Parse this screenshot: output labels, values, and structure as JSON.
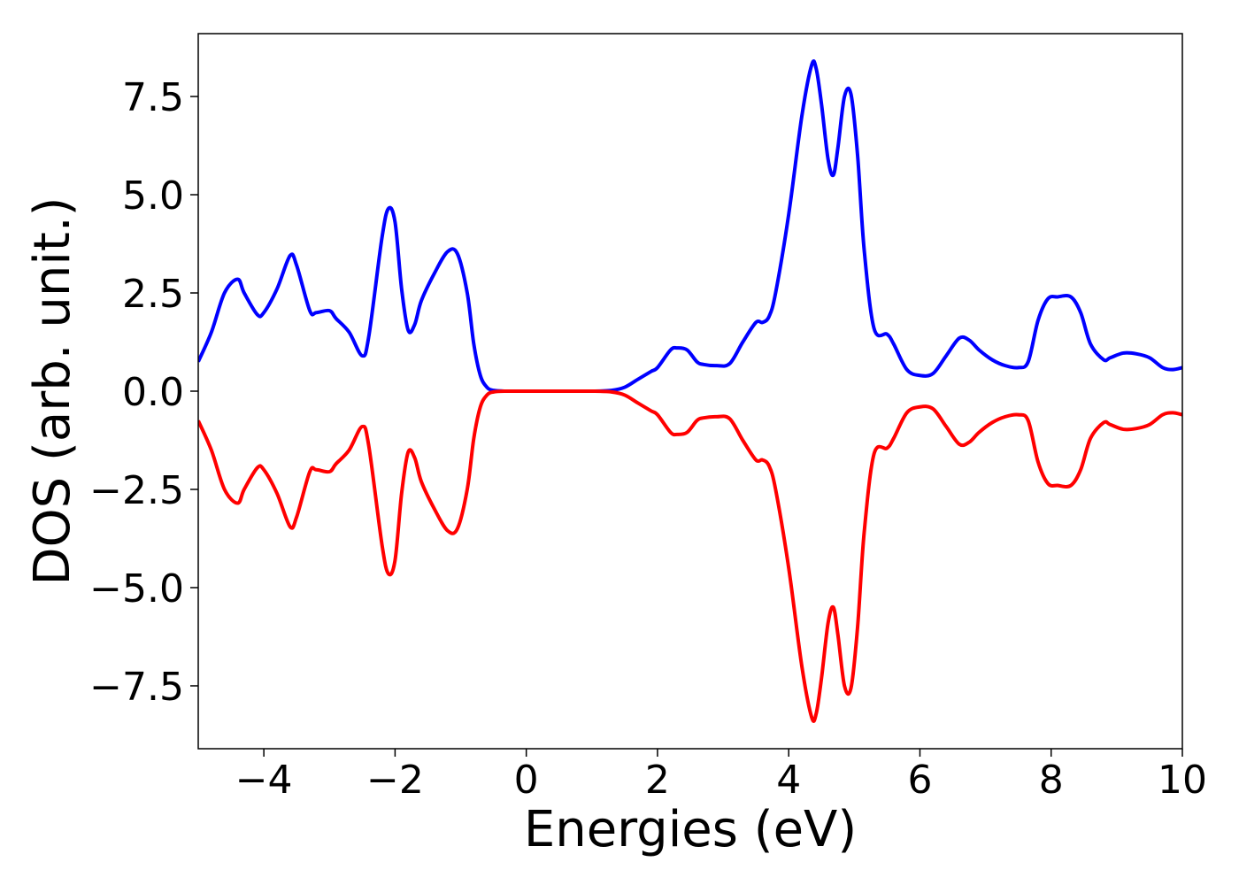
{
  "chart_data": {
    "type": "line",
    "title": "",
    "xlabel": "Energies (eV)",
    "ylabel": "DOS (arb. unit.)",
    "xlim": [
      -5,
      10
    ],
    "ylim": [
      -9.1,
      9.1
    ],
    "xticks": [
      -4,
      -2,
      0,
      2,
      4,
      6,
      8,
      10
    ],
    "xtick_labels": [
      "−4",
      "−2",
      "0",
      "2",
      "4",
      "6",
      "8",
      "10"
    ],
    "yticks": [
      7.5,
      5.0,
      2.5,
      0.0,
      -2.5,
      -5.0,
      -7.5
    ],
    "ytick_labels": [
      "7.5",
      "5.0",
      "2.5",
      "0.0",
      "−2.5",
      "−5.0",
      "−7.5"
    ],
    "grid": false,
    "legend": "none",
    "series": [
      {
        "color": "#0000ff",
        "x": [
          -5.0,
          -4.8,
          -4.6,
          -4.4,
          -4.3,
          -4.1,
          -4.0,
          -3.8,
          -3.6,
          -3.5,
          -3.3,
          -3.2,
          -3.0,
          -2.9,
          -2.7,
          -2.5,
          -2.4,
          -2.2,
          -2.1,
          -2.0,
          -1.9,
          -1.8,
          -1.7,
          -1.6,
          -1.4,
          -1.2,
          -1.05,
          -0.9,
          -0.8,
          -0.7,
          -0.6,
          -0.5,
          -0.3,
          0.0,
          0.5,
          1.0,
          1.3,
          1.5,
          1.7,
          1.9,
          2.0,
          2.2,
          2.3,
          2.45,
          2.6,
          2.7,
          2.9,
          3.1,
          3.3,
          3.5,
          3.6,
          3.7,
          3.8,
          4.0,
          4.2,
          4.35,
          4.42,
          4.5,
          4.6,
          4.68,
          4.75,
          4.85,
          4.95,
          5.05,
          5.15,
          5.3,
          5.5,
          5.6,
          5.8,
          6.0,
          6.2,
          6.4,
          6.6,
          6.75,
          6.9,
          7.1,
          7.3,
          7.5,
          7.65,
          7.8,
          7.95,
          8.1,
          8.3,
          8.45,
          8.6,
          8.8,
          8.9,
          9.1,
          9.3,
          9.5,
          9.7,
          9.85,
          10.0
        ],
        "y": [
          0.75,
          1.5,
          2.5,
          2.85,
          2.5,
          1.95,
          2.0,
          2.6,
          3.45,
          3.2,
          2.05,
          2.0,
          2.05,
          1.85,
          1.5,
          0.9,
          1.4,
          3.9,
          4.65,
          4.3,
          2.6,
          1.55,
          1.7,
          2.3,
          3.0,
          3.55,
          3.5,
          2.5,
          1.2,
          0.4,
          0.1,
          0.02,
          0.0,
          0.0,
          0.0,
          0.0,
          0.02,
          0.1,
          0.3,
          0.5,
          0.6,
          1.05,
          1.1,
          1.05,
          0.75,
          0.68,
          0.65,
          0.7,
          1.25,
          1.75,
          1.75,
          1.9,
          2.5,
          4.5,
          7.0,
          8.3,
          8.2,
          7.3,
          5.9,
          5.5,
          6.2,
          7.5,
          7.55,
          6.0,
          3.6,
          1.6,
          1.45,
          1.2,
          0.55,
          0.4,
          0.45,
          0.9,
          1.35,
          1.3,
          1.05,
          0.8,
          0.65,
          0.6,
          0.75,
          1.8,
          2.35,
          2.4,
          2.4,
          2.0,
          1.2,
          0.8,
          0.85,
          0.97,
          0.95,
          0.85,
          0.6,
          0.55,
          0.6
        ]
      },
      {
        "color": "#ff0000",
        "x": [
          -5.0,
          -4.8,
          -4.6,
          -4.4,
          -4.3,
          -4.1,
          -4.0,
          -3.8,
          -3.6,
          -3.5,
          -3.3,
          -3.2,
          -3.0,
          -2.9,
          -2.7,
          -2.5,
          -2.4,
          -2.2,
          -2.1,
          -2.0,
          -1.9,
          -1.8,
          -1.7,
          -1.6,
          -1.4,
          -1.2,
          -1.05,
          -0.9,
          -0.8,
          -0.7,
          -0.6,
          -0.5,
          -0.3,
          0.0,
          0.5,
          1.0,
          1.3,
          1.5,
          1.7,
          1.9,
          2.0,
          2.2,
          2.3,
          2.45,
          2.6,
          2.7,
          2.9,
          3.1,
          3.3,
          3.5,
          3.6,
          3.7,
          3.8,
          4.0,
          4.2,
          4.35,
          4.42,
          4.5,
          4.6,
          4.68,
          4.75,
          4.85,
          4.95,
          5.05,
          5.15,
          5.3,
          5.5,
          5.6,
          5.8,
          6.0,
          6.2,
          6.4,
          6.6,
          6.75,
          6.9,
          7.1,
          7.3,
          7.5,
          7.65,
          7.8,
          7.95,
          8.1,
          8.3,
          8.45,
          8.6,
          8.8,
          8.9,
          9.1,
          9.3,
          9.5,
          9.7,
          9.85,
          10.0
        ],
        "y": [
          -0.75,
          -1.5,
          -2.5,
          -2.85,
          -2.5,
          -1.95,
          -2.0,
          -2.6,
          -3.45,
          -3.2,
          -2.05,
          -2.0,
          -2.05,
          -1.85,
          -1.5,
          -0.9,
          -1.4,
          -3.9,
          -4.65,
          -4.3,
          -2.6,
          -1.55,
          -1.7,
          -2.3,
          -3.0,
          -3.55,
          -3.5,
          -2.5,
          -1.2,
          -0.4,
          -0.1,
          -0.02,
          0.0,
          0.0,
          0.0,
          0.0,
          -0.02,
          -0.1,
          -0.3,
          -0.5,
          -0.6,
          -1.05,
          -1.1,
          -1.05,
          -0.75,
          -0.68,
          -0.65,
          -0.7,
          -1.25,
          -1.75,
          -1.75,
          -1.9,
          -2.5,
          -4.5,
          -7.0,
          -8.3,
          -8.2,
          -7.3,
          -5.9,
          -5.5,
          -6.2,
          -7.5,
          -7.55,
          -6.0,
          -3.6,
          -1.6,
          -1.45,
          -1.2,
          -0.55,
          -0.4,
          -0.45,
          -0.9,
          -1.35,
          -1.3,
          -1.05,
          -0.8,
          -0.65,
          -0.6,
          -0.75,
          -1.8,
          -2.35,
          -2.4,
          -2.4,
          -2.0,
          -1.2,
          -0.8,
          -0.85,
          -0.97,
          -0.95,
          -0.85,
          -0.6,
          -0.55,
          -0.6
        ]
      }
    ]
  }
}
